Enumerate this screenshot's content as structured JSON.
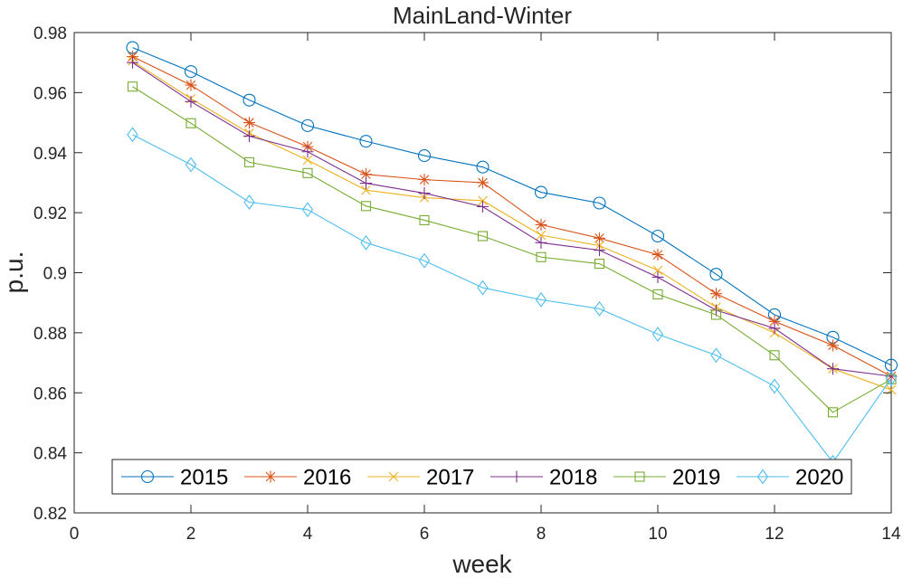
{
  "chart_data": {
    "type": "line",
    "title": "MainLand-Winter",
    "xlabel": "week",
    "ylabel": "p.u.",
    "xlim": [
      0,
      14
    ],
    "ylim": [
      0.82,
      0.98
    ],
    "x_ticks": [
      "0",
      "2",
      "4",
      "6",
      "8",
      "10",
      "12",
      "14"
    ],
    "y_ticks": [
      "0.82",
      "0.84",
      "0.86",
      "0.88",
      "0.9",
      "0.92",
      "0.94",
      "0.96",
      "0.98"
    ],
    "grid": false,
    "legend_position": "bottom, horizontal",
    "x": [
      1,
      2,
      3,
      4,
      5,
      6,
      7,
      8,
      9,
      10,
      11,
      12,
      13,
      14
    ],
    "series": [
      {
        "name": "2015",
        "color": "#0072BD",
        "marker": "circle",
        "values": [
          0.975,
          0.967,
          0.9575,
          0.949,
          0.9438,
          0.939,
          0.9352,
          0.9268,
          0.9232,
          0.9122,
          0.8995,
          0.886,
          0.8785,
          0.8692
        ]
      },
      {
        "name": "2016",
        "color": "#D95319",
        "marker": "asterisk",
        "values": [
          0.972,
          0.9625,
          0.95,
          0.942,
          0.9328,
          0.931,
          0.93,
          0.916,
          0.9115,
          0.906,
          0.893,
          0.8838,
          0.8758,
          0.8655
        ]
      },
      {
        "name": "2017",
        "color": "#EDB120",
        "marker": "x",
        "values": [
          0.9705,
          0.958,
          0.9465,
          0.9375,
          0.9275,
          0.925,
          0.924,
          0.9125,
          0.909,
          0.9008,
          0.8885,
          0.88,
          0.868,
          0.861
        ]
      },
      {
        "name": "2018",
        "color": "#7E2F8E",
        "marker": "plus",
        "values": [
          0.97,
          0.957,
          0.9455,
          0.9403,
          0.9298,
          0.9265,
          0.922,
          0.91,
          0.9075,
          0.8985,
          0.8875,
          0.8815,
          0.868,
          0.8655
        ]
      },
      {
        "name": "2019",
        "color": "#77AC30",
        "marker": "square",
        "values": [
          0.962,
          0.9498,
          0.9368,
          0.9332,
          0.9222,
          0.9175,
          0.9122,
          0.9052,
          0.903,
          0.8928,
          0.886,
          0.8725,
          0.8535,
          0.8645
        ]
      },
      {
        "name": "2020",
        "color": "#4DBEEE",
        "marker": "diamond",
        "values": [
          0.946,
          0.936,
          0.9235,
          0.921,
          0.91,
          0.904,
          0.895,
          0.891,
          0.888,
          0.8795,
          0.8725,
          0.8622,
          0.8368,
          0.8648
        ]
      }
    ]
  }
}
